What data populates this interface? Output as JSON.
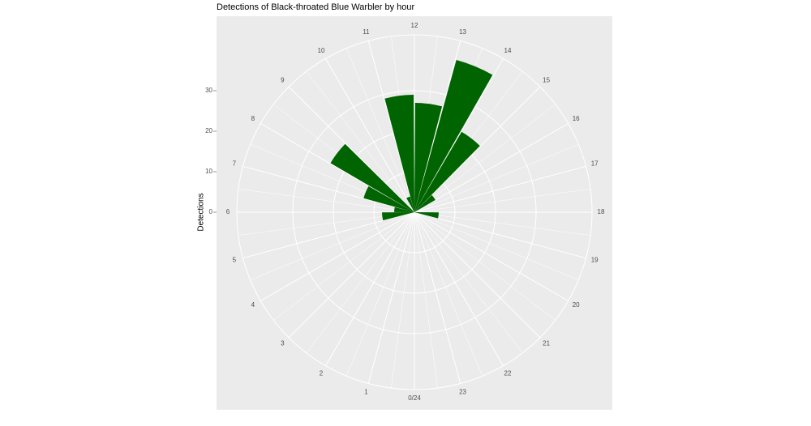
{
  "chart_data": {
    "type": "polar-bar",
    "title": "Detections of Black-throated Blue Warbler by hour",
    "y_label": "Detections",
    "categories": [
      "0/24",
      "1",
      "2",
      "3",
      "4",
      "5",
      "6",
      "7",
      "8",
      "9",
      "10",
      "11",
      "12",
      "13",
      "14",
      "15",
      "16",
      "17",
      "18",
      "19",
      "20",
      "21",
      "22",
      "23"
    ],
    "values": [
      0,
      0,
      0,
      0,
      0,
      8,
      5,
      13,
      24,
      0,
      4,
      29,
      27,
      39,
      23,
      6,
      0,
      0,
      6,
      0,
      0,
      0,
      0,
      0
    ],
    "color": "#006400",
    "ylim": [
      0,
      43.8
    ],
    "yticks": [
      0,
      10,
      20,
      30
    ],
    "grid": true
  }
}
